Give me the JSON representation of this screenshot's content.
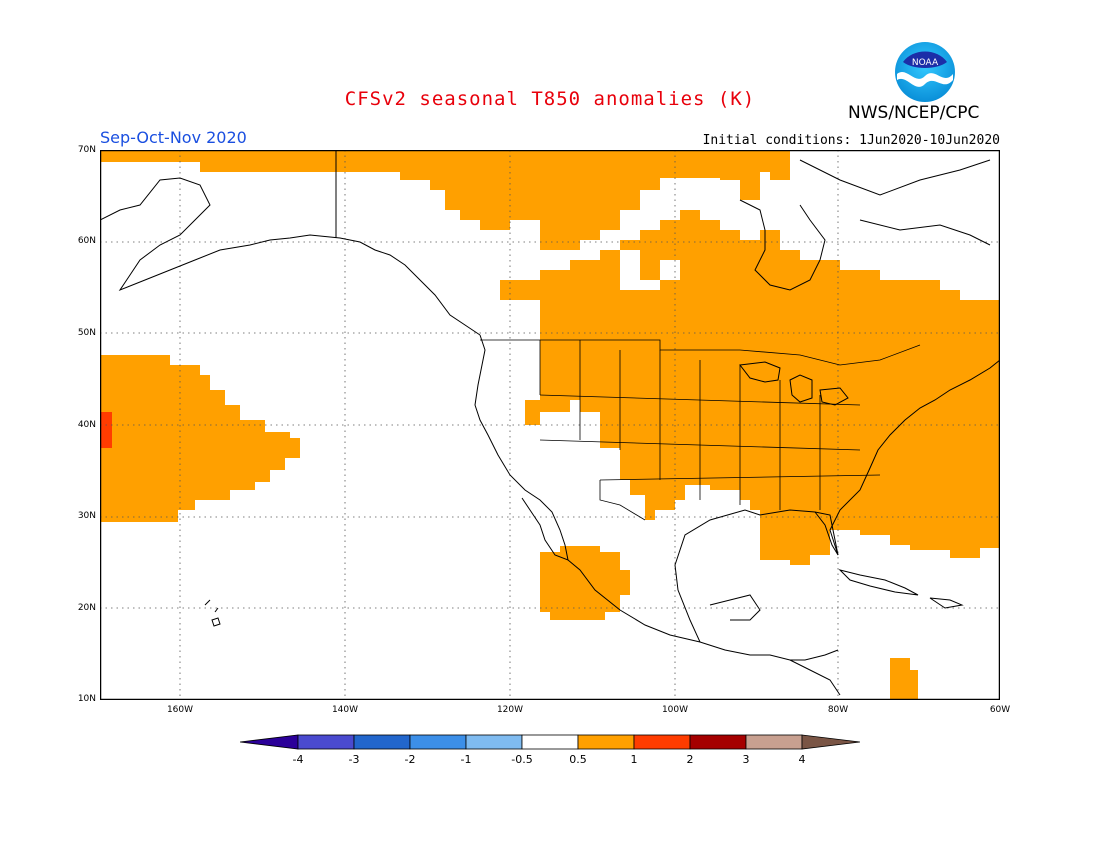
{
  "header": {
    "title": "CFSv2 seasonal T850 anomalies (K)",
    "org": "NWS/NCEP/CPC",
    "season": "Sep-Oct-Nov 2020",
    "initial_conditions": "Initial conditions: 1Jun2020-10Jun2020",
    "logo_text": "NOAA"
  },
  "map": {
    "projection": "cylindrical",
    "lon_range": [
      -172,
      -60
    ],
    "lat_range": [
      10,
      70
    ],
    "lat_labels": [
      "70N",
      "60N",
      "50N",
      "40N",
      "30N",
      "20N",
      "10N"
    ],
    "lon_labels": [
      "160W",
      "140W",
      "120W",
      "100W",
      "80W",
      "60W"
    ],
    "ocean_color": "#ffffff",
    "gridlines": true
  },
  "legend": {
    "labels": [
      "-4",
      "-3",
      "-2",
      "-1",
      "-0.5",
      "0.5",
      "1",
      "2",
      "3",
      "4"
    ],
    "colors": [
      "#2b0099",
      "#4a4acf",
      "#2266cc",
      "#3c8fe8",
      "#7fbbf0",
      "#ffffff",
      "#ffa000",
      "#ff3c00",
      "#a50000",
      "#c8a090",
      "#7a5545"
    ]
  },
  "anomaly_colors": {
    "0.5-1": "#ffa000",
    "1-2": "#ff3c00"
  }
}
